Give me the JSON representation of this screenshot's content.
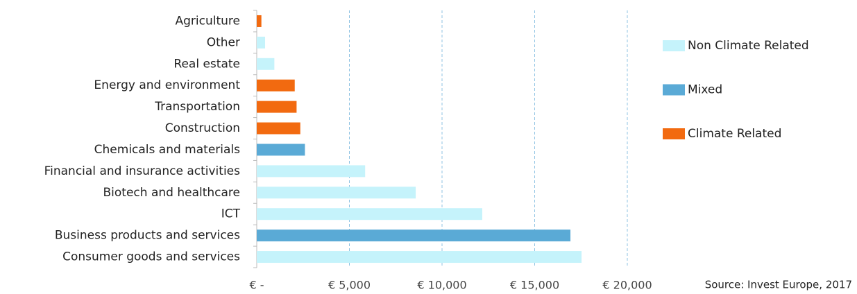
{
  "chart_data": {
    "type": "barh",
    "categories": [
      "Agriculture",
      "Other",
      "Real estate",
      "Energy and environment",
      "Transportation",
      "Construction",
      "Chemicals and materials",
      "Financial and insurance activities",
      "Biotech and healthcare",
      "ICT",
      "Business products and services",
      "Consumer goods and services"
    ],
    "series": [
      {
        "name": "Non Climate Related",
        "color": "#c5f3fb",
        "values": [
          null,
          450,
          950,
          null,
          null,
          null,
          null,
          5850,
          8580,
          12170,
          null,
          17530
        ]
      },
      {
        "name": "Mixed",
        "color": "#5aaad6",
        "values": [
          null,
          null,
          null,
          null,
          null,
          null,
          2600,
          null,
          null,
          null,
          16930,
          null
        ]
      },
      {
        "name": "Climate Related",
        "color": "#f26a10",
        "values": [
          250,
          null,
          null,
          2050,
          2150,
          2350,
          null,
          null,
          null,
          null,
          null,
          null
        ]
      }
    ],
    "xlim": [
      0,
      20000
    ],
    "xticks": [
      {
        "value": 0,
        "label": "€ -"
      },
      {
        "value": 5000,
        "label": "€ 5,000"
      },
      {
        "value": 10000,
        "label": "€ 10,000"
      },
      {
        "value": 15000,
        "label": "€ 15,000"
      },
      {
        "value": 20000,
        "label": "€ 20,000"
      }
    ],
    "grid": true,
    "legend": "right",
    "annotation": "Source: Invest Europe, 2017"
  }
}
